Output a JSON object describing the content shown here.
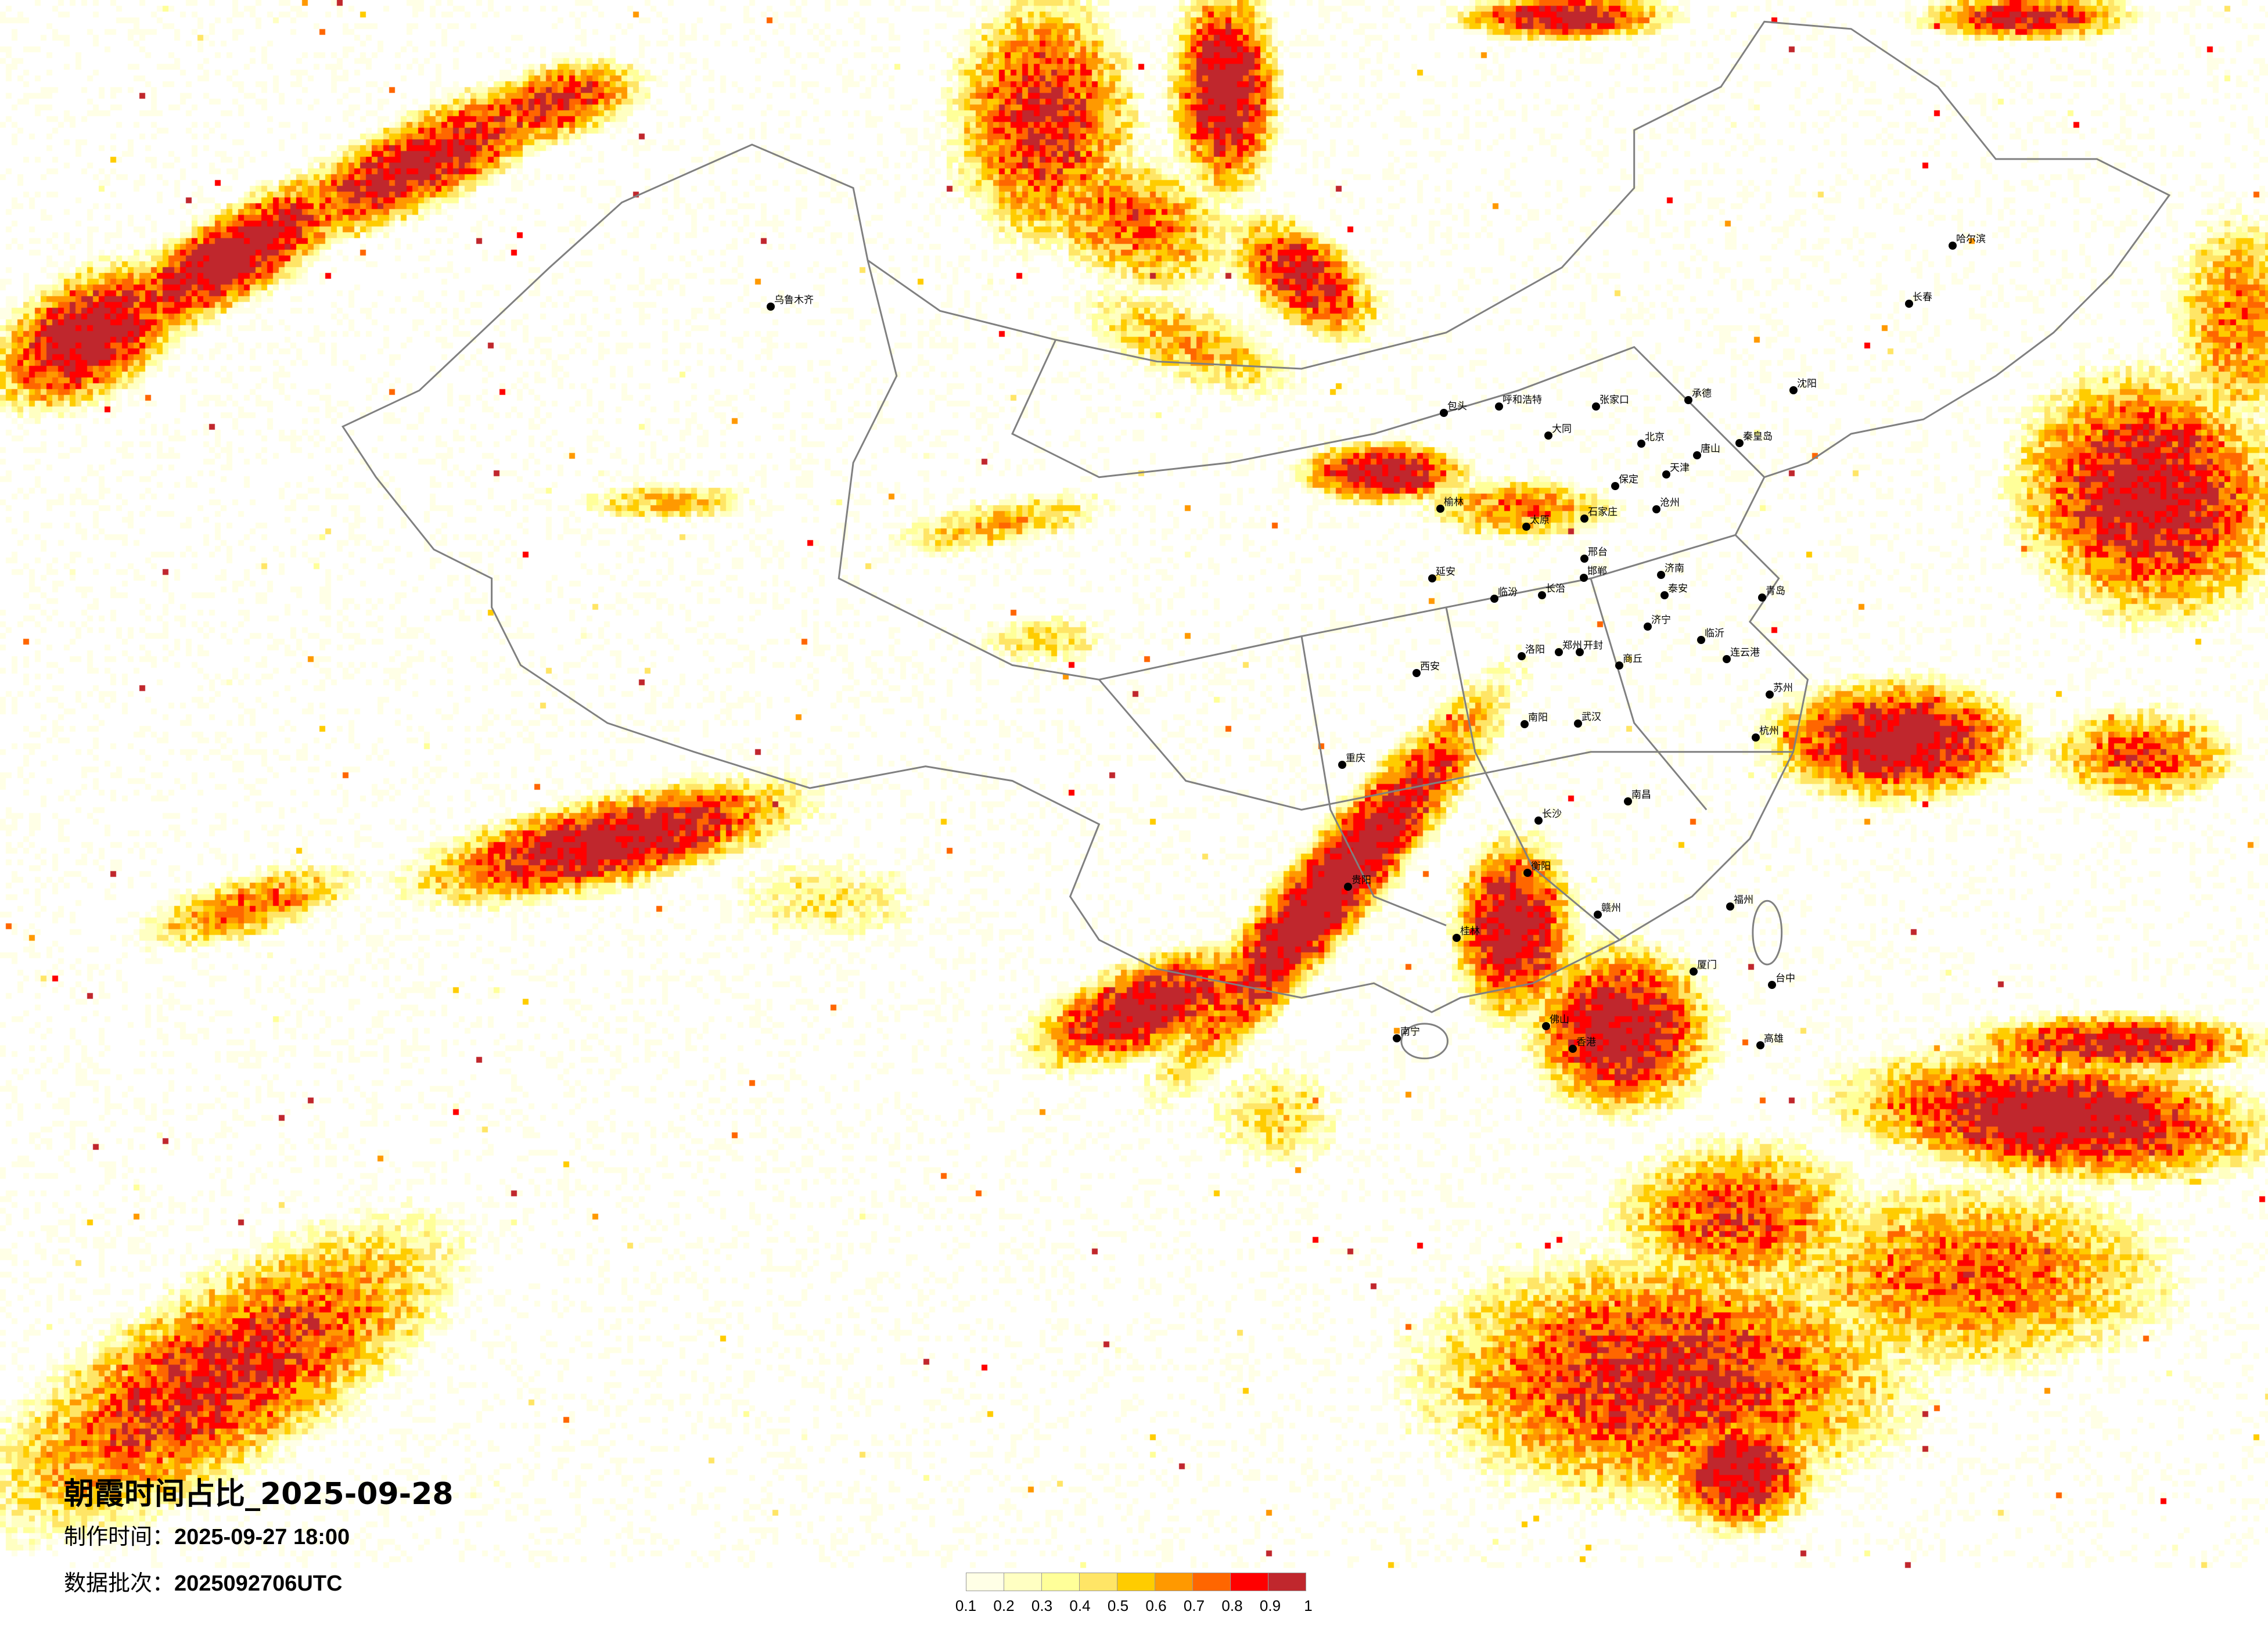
{
  "title": "朝霞时间占比_2025-09-28",
  "produced": {
    "label": "制作时间：",
    "value": "2025-09-27 18:00"
  },
  "batch": {
    "label": "数据批次：",
    "value": "2025092706UTC"
  },
  "legend": {
    "ticks": [
      "0.1",
      "0.2",
      "0.3",
      "0.4",
      "0.5",
      "0.6",
      "0.7",
      "0.8",
      "0.9",
      "1"
    ],
    "colors": [
      "#FFFFE6",
      "#FFFFC2",
      "#FFFF99",
      "#FFE566",
      "#FFCC00",
      "#FF9900",
      "#FF6600",
      "#FF0000",
      "#C0272D"
    ]
  },
  "map": {
    "border_color": "#808080",
    "cities": [
      "北京",
      "天津",
      "石家庄",
      "太原",
      "济南",
      "郑州",
      "西安",
      "青岛",
      "呼和浩特",
      "洛阳",
      "包头",
      "张家口",
      "唐山",
      "保定",
      "延安",
      "临汾",
      "长治",
      "邯郸",
      "邢台",
      "南阳",
      "商丘",
      "开封",
      "连云港",
      "临沂",
      "榆林",
      "大同",
      "承德",
      "秦皇岛",
      "沧州",
      "泰安",
      "济宁",
      "武汉",
      "长沙",
      "南昌",
      "杭州",
      "福州",
      "佛山",
      "香港",
      "厦门",
      "贵阳",
      "南宁",
      "重庆",
      "桂林",
      "台中",
      "高雄",
      "苏州",
      "衡阳",
      "赣州",
      "乌鲁木齐",
      "哈尔滨",
      "长春",
      "沈阳"
    ]
  }
}
